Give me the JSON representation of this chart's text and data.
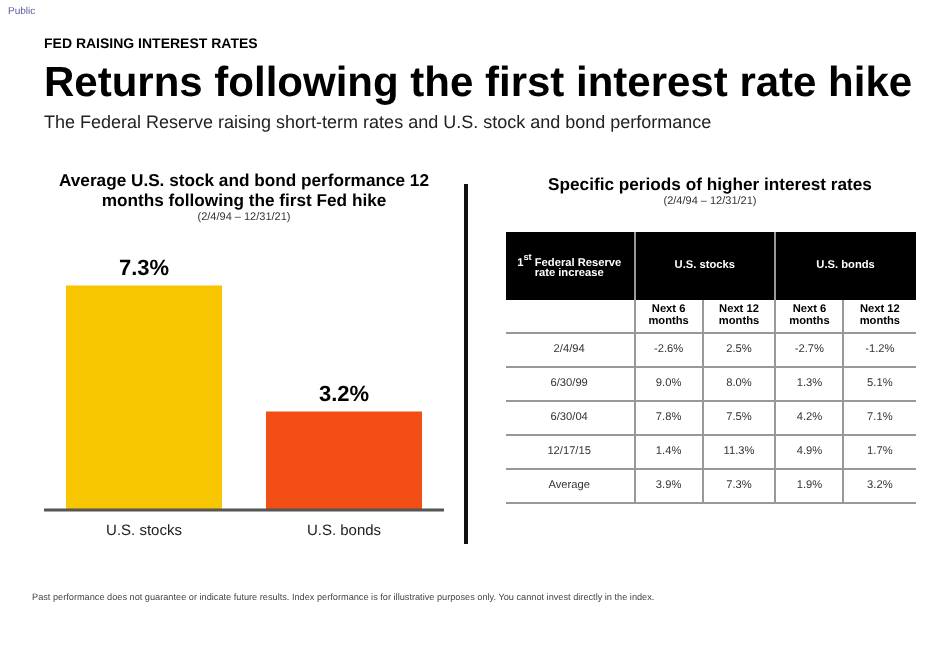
{
  "chart_data": [
    {
      "type": "bar",
      "title": "Average U.S. stock and bond performance 12 months following the first Fed hike",
      "subtitle": "(2/4/94 – 12/31/21)",
      "categories": [
        "U.S. stocks",
        "U.S. bonds"
      ],
      "values": [
        7.3,
        3.2
      ],
      "colors": [
        "#f7c600",
        "#f24e16"
      ],
      "value_labels": [
        "7.3%",
        "3.2%"
      ],
      "grid": false,
      "legend": false,
      "tick_labels": "x",
      "annotations": [
        "Public",
        "FED RAISING INTEREST RATES",
        "Returns following the first interest rate hike",
        "The Federal Reserve raising short-term rates and U.S. stock and bond performance",
        "Past performance does not guarantee or indicate future results. Index performance is for illustrative purposes only. You cannot invest directly in the index."
      ]
    },
    {
      "type": "other",
      "title": "Specific periods of higher interest rates",
      "subtitle": "(2/4/94 – 12/31/21)",
      "annotations": [
        "1$^{st}$ Federal Reserve rate increase",
        "U.S. stocks",
        "U.S. bonds"
      ],
      "categories": [
        "Next 6 months",
        "Next 12 months",
        "Next 6 months",
        "Next 12 months"
      ],
      "y_categories": [
        "2/4/94",
        "6/30/99",
        "6/30/04",
        "12/17/15",
        "Average"
      ],
      "cell_labels": [
        [
          "-2.6%",
          "2.5%",
          "-2.7%",
          "-1.2%"
        ],
        [
          "9.0%",
          "8.0%",
          "1.3%",
          "5.1%"
        ],
        [
          "7.8%",
          "7.5%",
          "4.2%",
          "7.1%"
        ],
        [
          "1.4%",
          "11.3%",
          "4.9%",
          "1.7%"
        ],
        [
          "3.9%",
          "7.3%",
          "1.9%",
          "3.2%"
        ]
      ]
    }
  ]
}
